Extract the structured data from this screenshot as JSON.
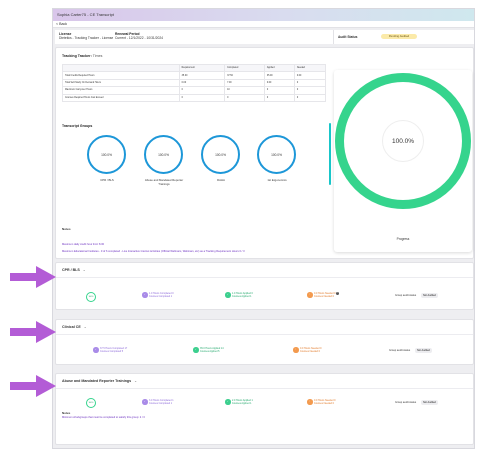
{
  "window": {
    "title": "Sophia Carter75 - CE Transcript",
    "back_label": "< Back"
  },
  "license": {
    "label": "License",
    "value": "Dietetics - Tracking Tracker - License",
    "renewal_label": "Renewal Period",
    "renewal_value": "Current - 12/1/2022 - 10/31/2024"
  },
  "audit": {
    "label": "Audit Status",
    "badge": "Pending Audited"
  },
  "tracking": {
    "title": "Tracking Tracker:",
    "subtitle": "Times",
    "columns": [
      "",
      "Requirement",
      "Completed",
      "Applied",
      "Needed"
    ],
    "rows": [
      [
        "Total Credits Required Hours",
        "35.00",
        "37.50",
        "35.00",
        "0.00"
      ],
      [
        "Total Self-Study On Demand Hours",
        "0.00",
        "7.00",
        "0.00",
        "0"
      ],
      [
        "Maximum Carryover Hours",
        "0",
        "10",
        "0",
        "0"
      ],
      [
        "Courses Required Hours Can Exceed",
        "0",
        "0",
        "0",
        "0"
      ]
    ]
  },
  "transcript_groups": {
    "title": "Transcript Groups",
    "items": [
      {
        "value": "100.0%",
        "label": "CPR / BLS"
      },
      {
        "value": "100.0%",
        "label": "Abuse and Mandated Reporter Trainings"
      },
      {
        "value": "100.0%",
        "label": "DAHA"
      },
      {
        "value": "100.0%",
        "label": "1st Ergonomics"
      }
    ]
  },
  "progress": {
    "value": "100.0%",
    "label": "Progress"
  },
  "notes": {
    "title": "Notes",
    "lines": [
      "Maximum daily credit hour limit: 8.00",
      "Maximum Educational Institutes - 0 of 6 completed - Live Interactive Internet Activities (Official Webinars, Webinars, etc) as a Tracking Requirement Hours 0 / 3"
    ]
  },
  "groups": [
    {
      "title": "CPR / BLS",
      "badge": "100%",
      "stats": [
        {
          "kind": "purple",
          "line1": "1.0 Hours Completed 0",
          "line2": "Courses Completed 1"
        },
        {
          "kind": "green",
          "line1": "1.0 Hours Applied 0",
          "line2": "Courses Applied 1"
        },
        {
          "kind": "orange",
          "line1": "0.0 Hours Needed 0",
          "line2": "Courses Needed 0"
        }
      ],
      "audit_label": "Group audit status",
      "audit_value": "Not Audited"
    },
    {
      "title": "Clinical CE",
      "stats": [
        {
          "kind": "purple",
          "line1": "37.5 Hours Completed 17",
          "line2": "Courses Completed 5"
        },
        {
          "kind": "green",
          "line1": "35.0 Hours Applied 14",
          "line2": "Courses Applied 5"
        },
        {
          "kind": "orange",
          "line1": "0.0 Hours Needed 0",
          "line2": "Courses Needed 0"
        }
      ],
      "audit_label": "Group audit status",
      "audit_value": "Not Audited"
    },
    {
      "title": "Abuse and Mandated Reporter Trainings",
      "badge": "100%",
      "stats": [
        {
          "kind": "purple",
          "line1": "3.0 Hours Completed 1",
          "line2": "Courses Completed 1"
        },
        {
          "kind": "green",
          "line1": "2.0 Hours Applied 1",
          "line2": "Courses Applied 1"
        },
        {
          "kind": "orange",
          "line1": "0.0 Hours Needed 0",
          "line2": "Courses Needed 0"
        }
      ],
      "audit_label": "Group audit status",
      "audit_value": "Not Audited",
      "notes_title": "Notes",
      "note": "Minimum 2/subgroups that must be completed to satisfy this group: 2 / 3"
    }
  ],
  "colors": {
    "ring_blue": "#1d97d8",
    "progress_green": "#35d48d",
    "arrow_purple": "#b35cd6",
    "badge_yellow": "#fbeaa9"
  }
}
